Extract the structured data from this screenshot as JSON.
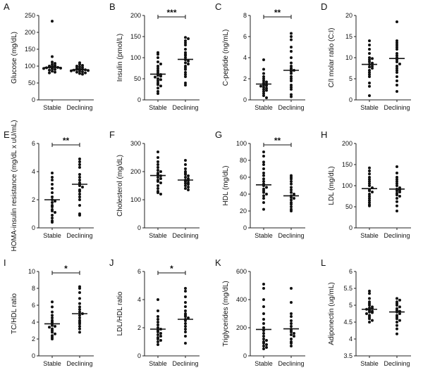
{
  "chart_data": [
    {
      "letter": "A",
      "type": "scatter",
      "ylabel": "Glucose (mg/dL)",
      "ylim": [
        0,
        250
      ],
      "yticks": [
        0,
        50,
        100,
        150,
        200,
        250
      ],
      "categories": [
        "Stable",
        "Declining"
      ],
      "series": [
        {
          "name": "Stable",
          "values": [
            233,
            128,
            112,
            108,
            105,
            102,
            100,
            99,
            98,
            97,
            96,
            95,
            94,
            93,
            92,
            90,
            88,
            85,
            82,
            80
          ],
          "mean": 96
        },
        {
          "name": "Declining",
          "values": [
            110,
            105,
            102,
            100,
            98,
            96,
            94,
            92,
            91,
            90,
            89,
            88,
            87,
            86,
            85,
            83,
            82,
            80,
            78,
            76
          ],
          "mean": 89
        }
      ],
      "significance": ""
    },
    {
      "letter": "B",
      "type": "scatter",
      "ylabel": "Insulin (pmol/L)",
      "ylim": [
        0,
        200
      ],
      "yticks": [
        0,
        50,
        100,
        150,
        200
      ],
      "categories": [
        "Stable",
        "Declining"
      ],
      "series": [
        {
          "name": "Stable",
          "values": [
            112,
            108,
            100,
            90,
            85,
            80,
            75,
            70,
            66,
            62,
            60,
            58,
            56,
            54,
            50,
            48,
            45,
            40,
            36,
            33,
            28,
            20,
            15
          ],
          "mean": 61
        },
        {
          "name": "Declining",
          "values": [
            148,
            145,
            140,
            135,
            130,
            120,
            112,
            108,
            105,
            100,
            95,
            92,
            88,
            85,
            80,
            76,
            72,
            65,
            60,
            55,
            40,
            35
          ],
          "mean": 96
        }
      ],
      "significance": "***"
    },
    {
      "letter": "C",
      "type": "scatter",
      "ylabel": "C-peptide (ng/mL)",
      "ylim": [
        0,
        8
      ],
      "yticks": [
        0,
        2,
        4,
        6,
        8
      ],
      "categories": [
        "Stable",
        "Declining"
      ],
      "series": [
        {
          "name": "Stable",
          "values": [
            3.8,
            2.9,
            2.5,
            2.2,
            2.0,
            1.8,
            1.7,
            1.6,
            1.5,
            1.4,
            1.35,
            1.3,
            1.2,
            1.1,
            1.0,
            0.9,
            0.8,
            0.6,
            0.4,
            0.2
          ],
          "mean": 1.5
        },
        {
          "name": "Declining",
          "values": [
            6.3,
            6.0,
            5.7,
            5.0,
            4.6,
            4.0,
            3.5,
            3.2,
            3.0,
            2.9,
            2.8,
            2.7,
            2.5,
            2.2,
            2.0,
            1.8,
            1.4,
            1.2,
            1.0,
            0.5,
            0.3
          ],
          "mean": 2.8
        }
      ],
      "significance": "**"
    },
    {
      "letter": "D",
      "type": "scatter",
      "ylabel": "C/I molar ratio (C:I)",
      "ylim": [
        0,
        20
      ],
      "yticks": [
        0,
        5,
        10,
        15,
        20
      ],
      "categories": [
        "Stable",
        "Declining"
      ],
      "series": [
        {
          "name": "Stable",
          "values": [
            14,
            13,
            12,
            11,
            10,
            9.8,
            9.5,
            9.0,
            8.7,
            8.4,
            8.0,
            7.8,
            7.5,
            7.0,
            6.5,
            6.0,
            5.5,
            4.0,
            3.2,
            1.0
          ],
          "mean": 8.4
        },
        {
          "name": "Declining",
          "values": [
            18.5,
            14,
            13.5,
            13,
            12.5,
            12,
            11,
            10.5,
            10,
            9.5,
            9.0,
            8.5,
            8.0,
            7.5,
            7.0,
            6.5,
            5.5,
            4.5,
            3.5,
            2.0
          ],
          "mean": 9.8
        }
      ],
      "significance": ""
    },
    {
      "letter": "E",
      "type": "scatter",
      "ylabel": "HOMA-insulin resistance (mg/dL x uU/mL)",
      "ylim": [
        0,
        6
      ],
      "yticks": [
        0,
        2,
        4,
        6
      ],
      "categories": [
        "Stable",
        "Declining"
      ],
      "series": [
        {
          "name": "Stable",
          "values": [
            3.9,
            3.6,
            3.4,
            3.1,
            2.8,
            2.5,
            2.2,
            2.0,
            1.9,
            1.8,
            1.6,
            1.5,
            1.3,
            1.2,
            1.1,
            0.9,
            0.7,
            0.5,
            0.4
          ],
          "mean": 2.0
        },
        {
          "name": "Declining",
          "values": [
            4.9,
            4.7,
            4.5,
            4.3,
            3.8,
            3.6,
            3.4,
            3.2,
            3.1,
            3.0,
            2.9,
            2.7,
            2.6,
            2.4,
            2.2,
            2.0,
            1.6,
            1.0,
            0.9
          ],
          "mean": 3.1
        }
      ],
      "significance": "**"
    },
    {
      "letter": "F",
      "type": "scatter",
      "ylabel": "Cholesterol (mg/dL)",
      "ylim": [
        0,
        300
      ],
      "yticks": [
        0,
        100,
        200,
        300
      ],
      "categories": [
        "Stable",
        "Declining"
      ],
      "series": [
        {
          "name": "Stable",
          "values": [
            270,
            250,
            235,
            225,
            215,
            205,
            200,
            195,
            190,
            185,
            180,
            175,
            170,
            165,
            160,
            150,
            140,
            130,
            125,
            120
          ],
          "mean": 186
        },
        {
          "name": "Declining",
          "values": [
            240,
            225,
            210,
            200,
            195,
            190,
            185,
            180,
            175,
            170,
            168,
            165,
            160,
            158,
            155,
            150,
            145,
            140,
            135
          ],
          "mean": 170
        }
      ],
      "significance": ""
    },
    {
      "letter": "G",
      "type": "scatter",
      "ylabel": "HDL (mg/dL)",
      "ylim": [
        0,
        100
      ],
      "yticks": [
        0,
        20,
        40,
        60,
        80,
        100
      ],
      "categories": [
        "Stable",
        "Declining"
      ],
      "series": [
        {
          "name": "Stable",
          "values": [
            90,
            85,
            78,
            75,
            70,
            65,
            62,
            58,
            55,
            52,
            50,
            48,
            46,
            44,
            42,
            40,
            38,
            35,
            30,
            22
          ],
          "mean": 51
        },
        {
          "name": "Declining",
          "values": [
            62,
            60,
            58,
            55,
            52,
            48,
            45,
            42,
            40,
            38,
            36,
            35,
            33,
            30,
            28,
            25,
            22,
            20
          ],
          "mean": 38
        }
      ],
      "significance": "**"
    },
    {
      "letter": "H",
      "type": "scatter",
      "ylabel": "LDL (mg/dL)",
      "ylim": [
        0,
        200
      ],
      "yticks": [
        0,
        50,
        100,
        150,
        200
      ],
      "categories": [
        "Stable",
        "Declining"
      ],
      "series": [
        {
          "name": "Stable",
          "values": [
            142,
            135,
            128,
            120,
            115,
            110,
            105,
            100,
            95,
            90,
            88,
            85,
            80,
            75,
            70,
            65,
            60,
            55,
            52
          ],
          "mean": 93
        },
        {
          "name": "Declining",
          "values": [
            145,
            130,
            120,
            115,
            110,
            105,
            100,
            95,
            92,
            90,
            88,
            85,
            82,
            78,
            75,
            70,
            62,
            52,
            40
          ],
          "mean": 92
        }
      ],
      "significance": ""
    },
    {
      "letter": "I",
      "type": "scatter",
      "ylabel": "TC/HDL ratio",
      "ylim": [
        0,
        10
      ],
      "yticks": [
        0,
        2,
        4,
        6,
        8,
        10
      ],
      "categories": [
        "Stable",
        "Declining"
      ],
      "series": [
        {
          "name": "Stable",
          "values": [
            6.4,
            5.8,
            5.2,
            4.8,
            4.5,
            4.2,
            4.0,
            3.8,
            3.6,
            3.5,
            3.4,
            3.2,
            3.0,
            2.8,
            2.6,
            2.4,
            2.2,
            2.0
          ],
          "mean": 3.8
        },
        {
          "name": "Declining",
          "values": [
            8.2,
            8.0,
            7.5,
            6.8,
            6.2,
            5.8,
            5.5,
            5.2,
            5.0,
            4.8,
            4.5,
            4.2,
            4.0,
            3.8,
            3.5,
            3.2,
            2.8
          ],
          "mean": 5.0
        }
      ],
      "significance": "*"
    },
    {
      "letter": "J",
      "type": "scatter",
      "ylabel": "LDL/HDL ratio",
      "ylim": [
        0,
        6
      ],
      "yticks": [
        0,
        2,
        4,
        6
      ],
      "categories": [
        "Stable",
        "Declining"
      ],
      "series": [
        {
          "name": "Stable",
          "values": [
            4.0,
            3.2,
            2.8,
            2.6,
            2.4,
            2.2,
            2.0,
            1.9,
            1.8,
            1.7,
            1.6,
            1.5,
            1.4,
            1.3,
            1.2,
            1.1,
            1.0,
            0.8
          ],
          "mean": 1.9
        },
        {
          "name": "Declining",
          "values": [
            4.8,
            4.6,
            4.2,
            3.8,
            3.5,
            3.2,
            3.0,
            2.9,
            2.8,
            2.7,
            2.6,
            2.5,
            2.3,
            2.1,
            1.9,
            1.7,
            1.4,
            0.9
          ],
          "mean": 2.6
        }
      ],
      "significance": "*"
    },
    {
      "letter": "K",
      "type": "scatter",
      "ylabel": "Triglycerides (mg/dL)",
      "ylim": [
        0,
        600
      ],
      "yticks": [
        0,
        200,
        400,
        600
      ],
      "categories": [
        "Stable",
        "Declining"
      ],
      "series": [
        {
          "name": "Stable",
          "values": [
            510,
            480,
            400,
            350,
            300,
            260,
            230,
            200,
            180,
            160,
            140,
            120,
            110,
            100,
            90,
            80,
            70,
            60,
            50
          ],
          "mean": 188
        },
        {
          "name": "Declining",
          "values": [
            480,
            380,
            300,
            280,
            250,
            230,
            210,
            190,
            180,
            170,
            160,
            150,
            140,
            120,
            100,
            90,
            70
          ],
          "mean": 192
        }
      ],
      "significance": ""
    },
    {
      "letter": "L",
      "type": "scatter",
      "ylabel": "Adiponectin (ug/mL)",
      "ylim": [
        3.5,
        6.0
      ],
      "yticks": [
        3.5,
        4.0,
        4.5,
        5.0,
        5.5,
        6.0
      ],
      "categories": [
        "Stable",
        "Declining"
      ],
      "series": [
        {
          "name": "Stable",
          "values": [
            5.42,
            5.35,
            5.2,
            5.1,
            5.05,
            5.0,
            4.95,
            4.92,
            4.9,
            4.88,
            4.85,
            4.82,
            4.8,
            4.78,
            4.75,
            4.7,
            4.65,
            4.6,
            4.55,
            4.5
          ],
          "mean": 4.88
        },
        {
          "name": "Declining",
          "values": [
            5.2,
            5.15,
            5.1,
            5.05,
            5.0,
            4.95,
            4.9,
            4.85,
            4.82,
            4.8,
            4.75,
            4.7,
            4.65,
            4.6,
            4.55,
            4.5,
            4.4,
            4.3,
            4.15
          ],
          "mean": 4.8
        }
      ],
      "significance": ""
    }
  ]
}
